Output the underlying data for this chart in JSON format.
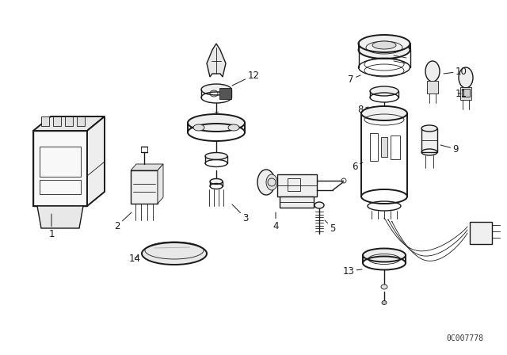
{
  "background_color": "#ffffff",
  "line_color": "#1a1a1a",
  "part_number_text": "0C007778",
  "label_fontsize": 8.5,
  "part_num_fontsize": 7,
  "fig_width": 6.4,
  "fig_height": 4.48,
  "dpi": 100
}
